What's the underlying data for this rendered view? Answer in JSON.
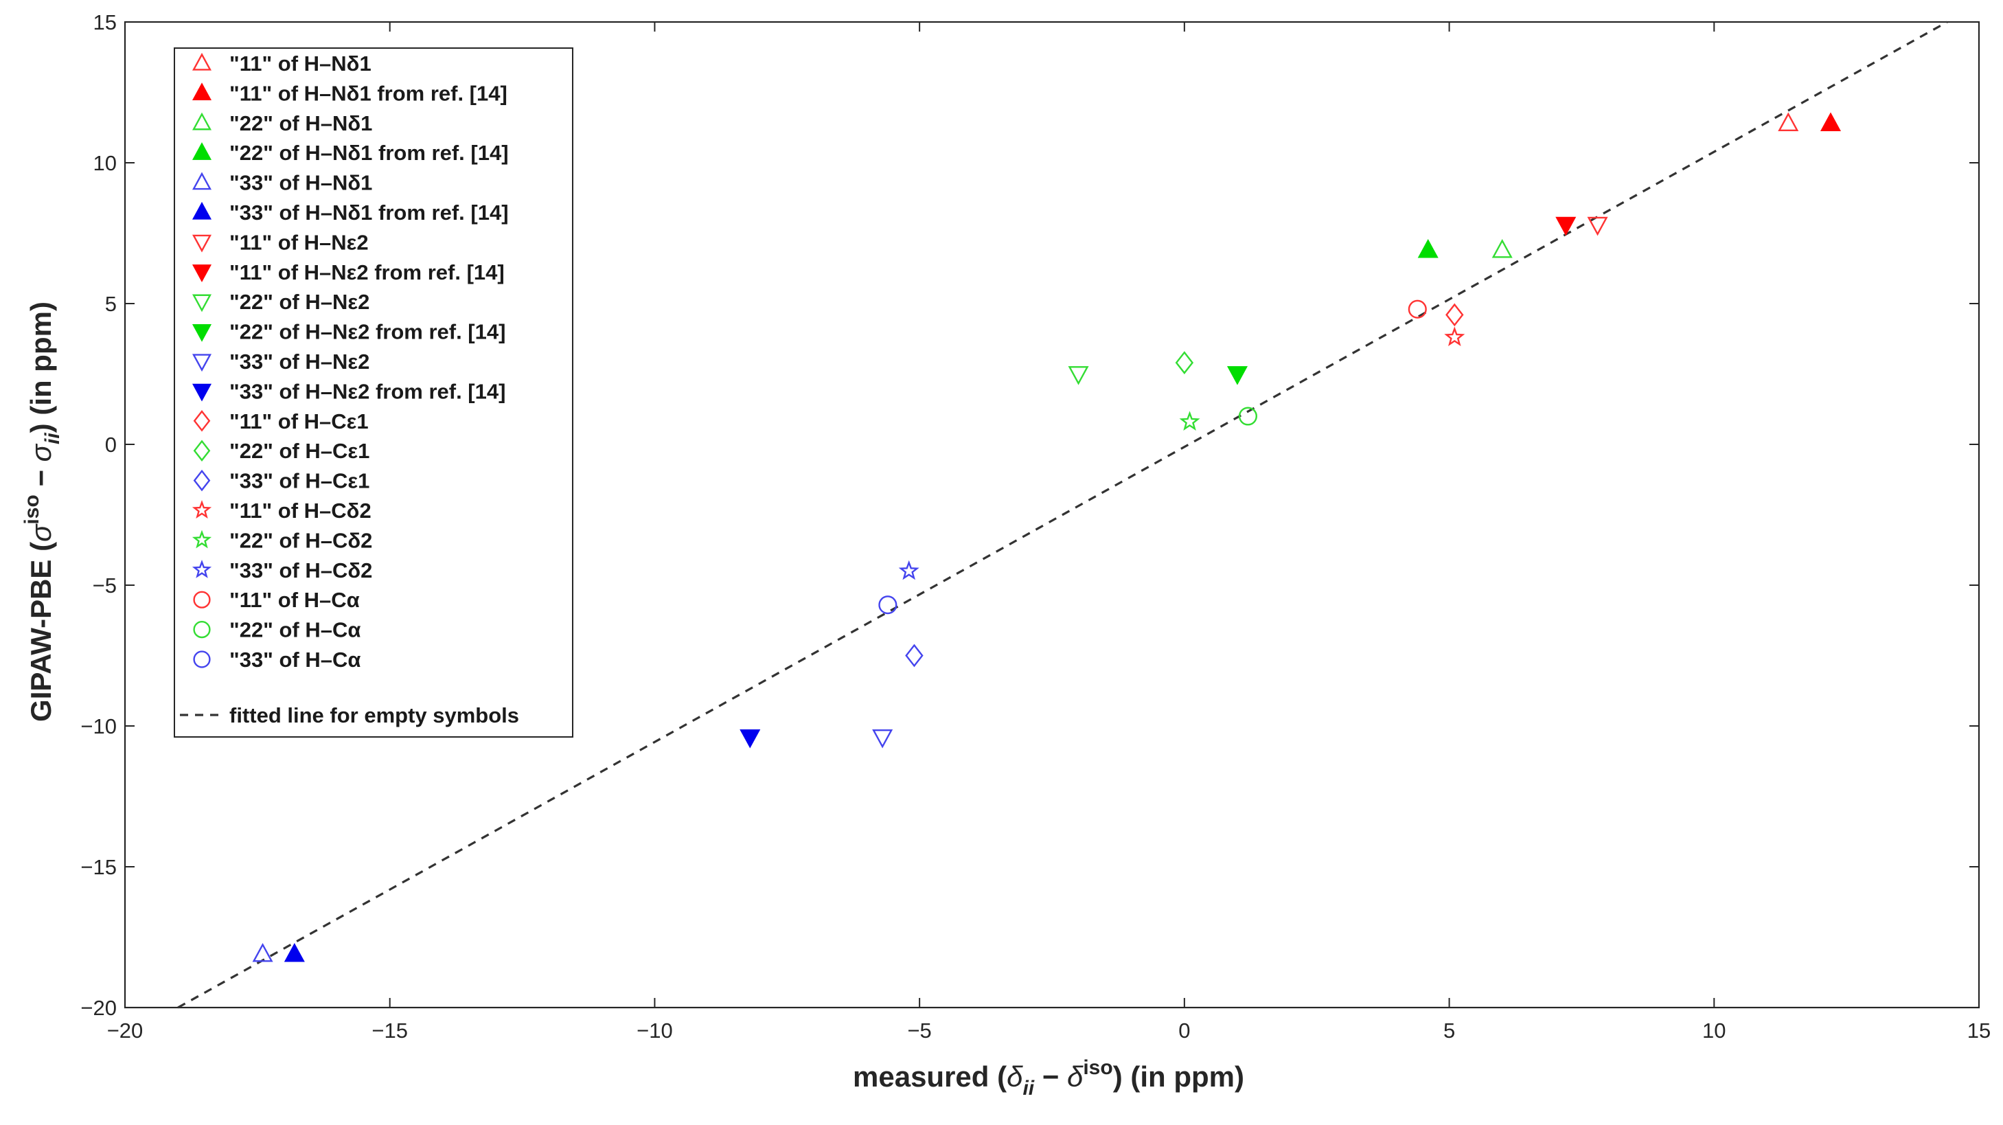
{
  "chart_data": {
    "type": "scatter",
    "title": "",
    "xlabel": {
      "main": "measured (",
      "delta": "δ",
      "sub": "ii",
      "minus": " − ",
      "delta2": "δ",
      "sup": "iso",
      "end": ") (in ppm)"
    },
    "ylabel": {
      "main": "GIPAW-PBE (",
      "sigma": "σ",
      "sup": "iso",
      "minus": " − ",
      "sigma2": "σ",
      "sub": "ii",
      "end": ") (in ppm)"
    },
    "xlim": [
      -20,
      15
    ],
    "ylim": [
      -20,
      15
    ],
    "xticks": [
      -20,
      -15,
      -10,
      -5,
      0,
      5,
      10,
      15
    ],
    "yticks": [
      -20,
      -15,
      -10,
      -5,
      0,
      5,
      10,
      15
    ],
    "xtick_labels": [
      "−20",
      "−15",
      "−10",
      "−5",
      "0",
      "5",
      "10",
      "15"
    ],
    "ytick_labels": [
      "−20",
      "−15",
      "−10",
      "−5",
      "0",
      "5",
      "10",
      "15"
    ],
    "grid": false,
    "legend_position": "top-left",
    "fit_line": {
      "name": "fitted line for empty symbols",
      "style": "dashed",
      "color": "#333333",
      "points": [
        [
          -19,
          -20
        ],
        [
          14.4,
          15
        ]
      ]
    },
    "series": [
      {
        "name": "\"11\" of H–Nδ1",
        "marker": "triangle-up",
        "filled": false,
        "color": "#ff3333",
        "points": [
          [
            11.4,
            11.4
          ]
        ]
      },
      {
        "name": "\"11\" of H–Nδ1 from ref. [14]",
        "marker": "triangle-up",
        "filled": true,
        "color": "#ff0000",
        "points": [
          [
            12.2,
            11.4
          ]
        ]
      },
      {
        "name": "\"22\" of H–Nδ1",
        "marker": "triangle-up",
        "filled": false,
        "color": "#33dd33",
        "points": [
          [
            6.0,
            6.9
          ]
        ]
      },
      {
        "name": "\"22\" of H–Nδ1 from ref. [14]",
        "marker": "triangle-up",
        "filled": true,
        "color": "#00dd00",
        "points": [
          [
            4.6,
            6.9
          ]
        ]
      },
      {
        "name": "\"33\" of H–Nδ1",
        "marker": "triangle-up",
        "filled": false,
        "color": "#4444ee",
        "points": [
          [
            -17.4,
            -18.1
          ]
        ]
      },
      {
        "name": "\"33\" of H–Nδ1 from ref. [14]",
        "marker": "triangle-up",
        "filled": true,
        "color": "#0000ee",
        "points": [
          [
            -16.8,
            -18.1
          ]
        ]
      },
      {
        "name": "\"11\" of H–Nε2",
        "marker": "triangle-down",
        "filled": false,
        "color": "#ff3333",
        "points": [
          [
            7.8,
            7.8
          ]
        ]
      },
      {
        "name": "\"11\" of H–Nε2 from ref. [14]",
        "marker": "triangle-down",
        "filled": true,
        "color": "#ff0000",
        "points": [
          [
            7.2,
            7.8
          ]
        ]
      },
      {
        "name": "\"22\" of H–Nε2",
        "marker": "triangle-down",
        "filled": false,
        "color": "#33dd33",
        "points": [
          [
            -2.0,
            2.5
          ]
        ]
      },
      {
        "name": "\"22\" of H–Nε2 from ref. [14]",
        "marker": "triangle-down",
        "filled": true,
        "color": "#00dd00",
        "points": [
          [
            1.0,
            2.5
          ]
        ]
      },
      {
        "name": "\"33\" of H–Nε2",
        "marker": "triangle-down",
        "filled": false,
        "color": "#4444ee",
        "points": [
          [
            -5.7,
            -10.4
          ]
        ]
      },
      {
        "name": "\"33\" of H–Nε2 from ref. [14]",
        "marker": "triangle-down",
        "filled": true,
        "color": "#0000ee",
        "points": [
          [
            -8.2,
            -10.4
          ]
        ]
      },
      {
        "name": "\"11\" of H–Cε1",
        "marker": "diamond",
        "filled": false,
        "color": "#ff3333",
        "points": [
          [
            5.1,
            4.6
          ]
        ]
      },
      {
        "name": "\"22\" of H–Cε1",
        "marker": "diamond",
        "filled": false,
        "color": "#33dd33",
        "points": [
          [
            0.0,
            2.9
          ]
        ]
      },
      {
        "name": "\"33\" of H–Cε1",
        "marker": "diamond",
        "filled": false,
        "color": "#4444ee",
        "points": [
          [
            -5.1,
            -7.5
          ]
        ]
      },
      {
        "name": "\"11\" of H–Cδ2",
        "marker": "star",
        "filled": false,
        "color": "#ff3333",
        "points": [
          [
            5.1,
            3.8
          ]
        ]
      },
      {
        "name": "\"22\" of H–Cδ2",
        "marker": "star",
        "filled": false,
        "color": "#33dd33",
        "points": [
          [
            0.1,
            0.8
          ]
        ]
      },
      {
        "name": "\"33\" of H–Cδ2",
        "marker": "star",
        "filled": false,
        "color": "#4444ee",
        "points": [
          [
            -5.2,
            -4.5
          ]
        ]
      },
      {
        "name": "\"11\" of H–Cα",
        "marker": "circle",
        "filled": false,
        "color": "#ff3333",
        "points": [
          [
            4.4,
            4.8
          ]
        ]
      },
      {
        "name": "\"22\" of H–Cα",
        "marker": "circle",
        "filled": false,
        "color": "#33dd33",
        "points": [
          [
            1.2,
            1.0
          ]
        ]
      },
      {
        "name": "\"33\" of H–Cα",
        "marker": "circle",
        "filled": false,
        "color": "#4444ee",
        "points": [
          [
            -5.6,
            -5.7
          ]
        ]
      }
    ]
  }
}
